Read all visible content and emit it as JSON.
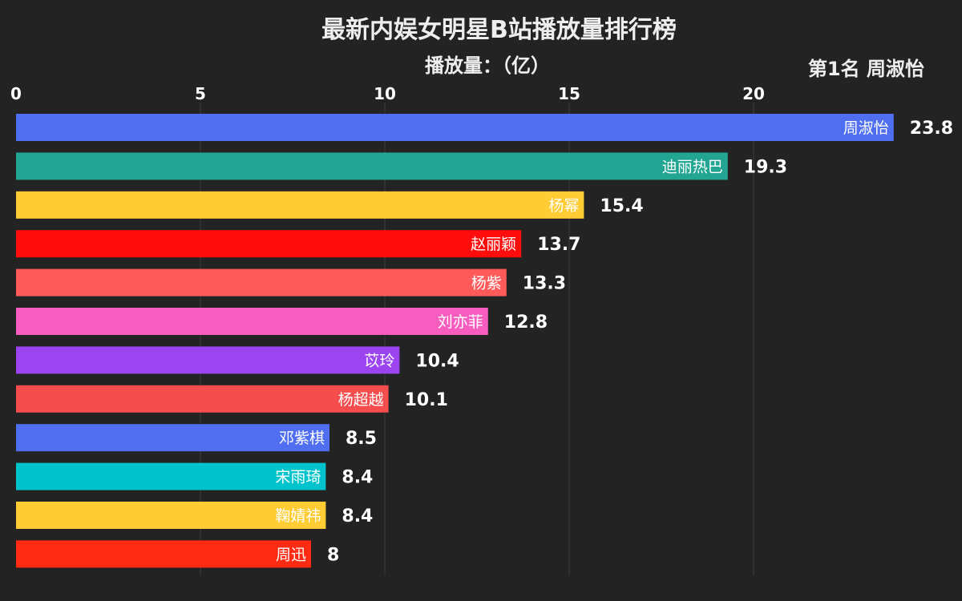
{
  "header": {
    "title": "最新内娱女明星B站播放量排行榜",
    "unit_label": "播放量：（亿）",
    "rank_text": "第1名 周淑怡"
  },
  "chart_data": {
    "type": "bar",
    "orientation": "horizontal",
    "title": "最新内娱女明星B站播放量排行榜",
    "xlabel": "播放量：（亿）",
    "ylabel": "",
    "xlim": [
      0,
      25
    ],
    "xticks": [
      0,
      5,
      10,
      15,
      20
    ],
    "grid": true,
    "categories": [
      "周淑怡",
      "迪丽热巴",
      "杨幂",
      "赵丽颖",
      "杨紫",
      "刘亦菲",
      "苡玲",
      "杨超越",
      "邓紫棋",
      "宋雨琦",
      "鞠婧祎",
      "周迅"
    ],
    "values": [
      23.8,
      19.3,
      15.4,
      13.7,
      13.3,
      12.8,
      10.4,
      10.1,
      8.5,
      8.4,
      8.4,
      8
    ],
    "value_labels": [
      "23.8",
      "19.3",
      "15.4",
      "13.7",
      "13.3",
      "12.8",
      "10.4",
      "10.1",
      "8.5",
      "8.4",
      "8.4",
      "8"
    ],
    "colors": [
      "#4F6EF0",
      "#22A593",
      "#FFCC33",
      "#FF0D0D",
      "#FF5A5A",
      "#F75CBF",
      "#9B44F0",
      "#F54D4D",
      "#4F6EF0",
      "#00C3CC",
      "#FFCC33",
      "#FF2A12"
    ]
  }
}
